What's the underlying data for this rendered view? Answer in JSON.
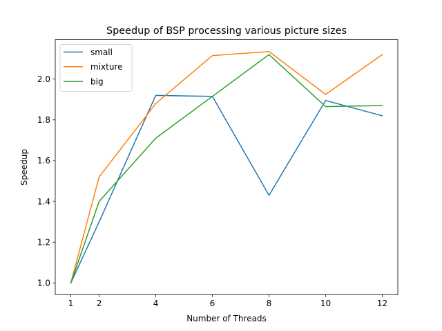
{
  "chart_data": {
    "type": "line",
    "title": "Speedup of BSP processing various picture sizes",
    "xlabel": "Number of Threads",
    "ylabel": "Speedup",
    "x": [
      1,
      2,
      4,
      6,
      8,
      10,
      12
    ],
    "xticks": [
      1,
      2,
      4,
      6,
      8,
      10,
      12
    ],
    "xtick_labels": [
      "1",
      "2",
      "4",
      "6",
      "8",
      "10",
      "12"
    ],
    "yticks": [
      1.0,
      1.2,
      1.4,
      1.6,
      1.8,
      2.0
    ],
    "ytick_labels": [
      "1.0",
      "1.2",
      "1.4",
      "1.6",
      "1.8",
      "2.0"
    ],
    "xlim": [
      0.45,
      12.55
    ],
    "ylim": [
      0.943,
      2.193
    ],
    "grid": false,
    "legend_position": "top-left",
    "series": [
      {
        "name": "small",
        "color": "#1f77b4",
        "values": [
          1.0,
          1.3,
          1.92,
          1.915,
          1.43,
          1.895,
          1.82
        ]
      },
      {
        "name": "mixture",
        "color": "#ff7f0e",
        "values": [
          1.0,
          1.52,
          1.88,
          2.115,
          2.135,
          1.925,
          2.12
        ]
      },
      {
        "name": "big",
        "color": "#2ca02c",
        "values": [
          1.0,
          1.4,
          1.71,
          1.915,
          2.12,
          1.865,
          1.87
        ]
      }
    ]
  }
}
